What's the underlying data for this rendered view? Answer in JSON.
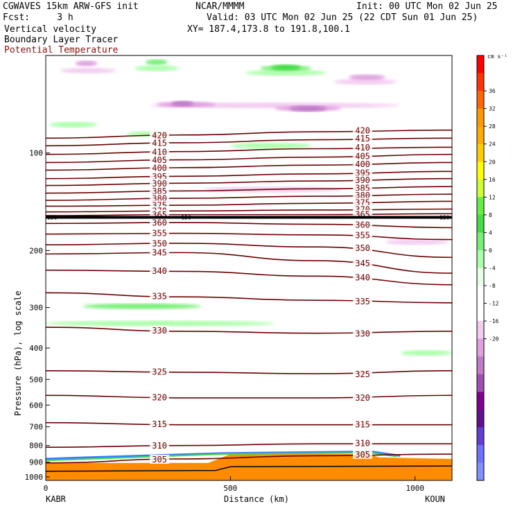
{
  "header": {
    "model": "CGWAVES 15km ARW-GFS init",
    "source": "NCAR/MMMM",
    "init": "Init: 00 UTC Mon 02 Jun 25",
    "fcst": "Fcst:     3 h",
    "valid": "Valid: 03 UTC Mon 02 Jun 25 (22 CDT Sun 01 Jun 25)",
    "field1": "Vertical velocity",
    "xy": "XY= 187.4,173.8 to 191.8,100.1",
    "field2": "Boundary Layer Tracer",
    "field3": "Potential Temperature"
  },
  "colors": {
    "theta": "#6b0000",
    "field3_label": "#8b1010"
  },
  "chart_data": {
    "type": "heatmap",
    "xlabel": "Distance (km)",
    "ylabel": "Pressure (hPa), log scale",
    "xlim": [
      0,
      1100
    ],
    "x_ticks": [
      "0",
      "500",
      "1000"
    ],
    "left_station": "KABR",
    "right_station": "KOUN",
    "ylim": [
      1000,
      50
    ],
    "yscale": "log",
    "y_ticks": [
      "100",
      "200",
      "300",
      "400",
      "500",
      "600",
      "700",
      "800",
      "900",
      "1000"
    ],
    "colorbar": {
      "unit": "cm s⁻¹",
      "ticks": [
        "36",
        "32",
        "28",
        "24",
        "20",
        "16",
        "12",
        "8",
        "4",
        "0",
        "-4",
        "-8",
        "-12",
        "-16",
        "-20"
      ],
      "colors": [
        "#ff0000",
        "#ff3300",
        "#ff6600",
        "#ff9900",
        "#ffaa00",
        "#ffcc00",
        "#ffff00",
        "#ccff33",
        "#66ee44",
        "#44dd44",
        "#77ee77",
        "#aaffaa",
        "#e6ffe6",
        "#ffffff",
        "#ffffff",
        "#f3ccf0",
        "#e0a0e0",
        "#c07ac8",
        "#a050b0",
        "#800090",
        "#601090",
        "#6040d0",
        "#7070ff",
        "#8090ff"
      ]
    },
    "theta_labels": [
      "420",
      "415",
      "410",
      "405",
      "400",
      "395",
      "390",
      "385",
      "380",
      "375",
      "370",
      "365",
      "360",
      "355",
      "350",
      "345",
      "340",
      "335",
      "330",
      "325",
      "320",
      "315",
      "310",
      "305"
    ],
    "tropopause_label": "150",
    "contours": [
      {
        "value": 420,
        "p": [
          90,
          88,
          86,
          85
        ]
      },
      {
        "value": 415,
        "p": [
          95,
          93,
          91,
          90
        ]
      },
      {
        "value": 410,
        "p": [
          101,
          99,
          97,
          96
        ]
      },
      {
        "value": 405,
        "p": [
          107,
          105,
          103,
          101
        ]
      },
      {
        "value": 400,
        "p": [
          113,
          111,
          109,
          107
        ]
      },
      {
        "value": 395,
        "p": [
          120,
          118,
          116,
          114
        ]
      },
      {
        "value": 390,
        "p": [
          126,
          124,
          122,
          120
        ]
      },
      {
        "value": 385,
        "p": [
          133,
          131,
          129,
          127
        ]
      },
      {
        "value": 380,
        "p": [
          140,
          138,
          136,
          134
        ]
      },
      {
        "value": 375,
        "p": [
          146,
          145,
          143,
          141
        ]
      },
      {
        "value": 370,
        "p": [
          152,
          151,
          150,
          149
        ]
      },
      {
        "value": 365,
        "p": [
          156,
          155,
          155,
          154
        ]
      },
      {
        "value": 360,
        "p": [
          165,
          164,
          166,
          170
        ]
      },
      {
        "value": 355,
        "p": [
          178,
          177,
          179,
          185
        ]
      },
      {
        "value": 350,
        "p": [
          192,
          190,
          195,
          210
        ]
      },
      {
        "value": 345,
        "p": [
          205,
          203,
          215,
          235
        ]
      },
      {
        "value": 340,
        "p": [
          230,
          232,
          240,
          255
        ]
      },
      {
        "value": 335,
        "p": [
          270,
          278,
          285,
          290
        ]
      },
      {
        "value": 330,
        "p": [
          345,
          355,
          360,
          355
        ]
      },
      {
        "value": 325,
        "p": [
          470,
          475,
          480,
          470
        ]
      },
      {
        "value": 320,
        "p": [
          560,
          570,
          570,
          560
        ]
      },
      {
        "value": 315,
        "p": [
          680,
          690,
          690,
          690
        ]
      },
      {
        "value": 310,
        "p": [
          810,
          800,
          790,
          790
        ]
      },
      {
        "value": 305,
        "p": [
          905,
          880,
          860,
          850
        ]
      }
    ],
    "vv_areas": [
      {
        "level": -4,
        "x": [
          40,
          190
        ],
        "p": [
          50,
          62
        ]
      },
      {
        "level": -8,
        "x": [
          80,
          140
        ],
        "p": [
          50,
          56
        ]
      },
      {
        "level": 4,
        "x": [
          240,
          360
        ],
        "p": [
          50,
          60
        ]
      },
      {
        "level": 8,
        "x": [
          270,
          330
        ],
        "p": [
          50,
          55
        ]
      },
      {
        "level": 4,
        "x": [
          540,
          760
        ],
        "p": [
          50,
          64
        ]
      },
      {
        "level": 8,
        "x": [
          580,
          720
        ],
        "p": [
          50,
          60
        ]
      },
      {
        "level": 12,
        "x": [
          610,
          690
        ],
        "p": [
          52,
          57
        ]
      },
      {
        "level": -4,
        "x": [
          280,
          960
        ],
        "p": [
          62,
          82
        ]
      },
      {
        "level": -8,
        "x": [
          300,
          460
        ],
        "p": [
          66,
          76
        ]
      },
      {
        "level": -12,
        "x": [
          340,
          400
        ],
        "p": [
          68,
          73
        ]
      },
      {
        "level": -8,
        "x": [
          620,
          800
        ],
        "p": [
          68,
          78
        ]
      },
      {
        "level": -12,
        "x": [
          660,
          760
        ],
        "p": [
          71,
          75
        ]
      },
      {
        "level": -4,
        "x": [
          780,
          950
        ],
        "p": [
          52,
          70
        ]
      },
      {
        "level": -8,
        "x": [
          820,
          920
        ],
        "p": [
          55,
          62
        ]
      },
      {
        "level": 4,
        "x": [
          10,
          140
        ],
        "p": [
          76,
          88
        ]
      },
      {
        "level": 4,
        "x": [
          220,
          340
        ],
        "p": [
          78,
          98
        ]
      },
      {
        "level": 4,
        "x": [
          500,
          720
        ],
        "p": [
          82,
          110
        ]
      },
      {
        "level": -4,
        "x": [
          430,
          800
        ],
        "p": [
          112,
          150
        ]
      },
      {
        "level": -4,
        "x": [
          920,
          1090
        ],
        "p": [
          165,
          215
        ]
      },
      {
        "level": 4,
        "x": [
          0,
          620
        ],
        "p": [
          240,
          470
        ]
      },
      {
        "level": 8,
        "x": [
          100,
          420
        ],
        "p": [
          260,
          340
        ]
      },
      {
        "level": 4,
        "x": [
          960,
          1100
        ],
        "p": [
          330,
          520
        ]
      }
    ]
  }
}
